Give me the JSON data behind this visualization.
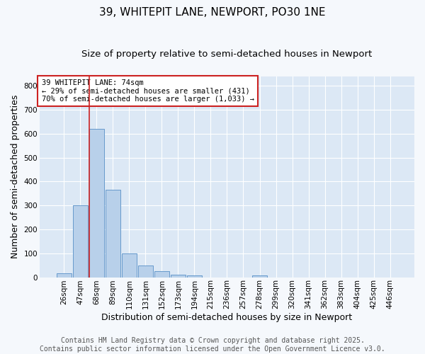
{
  "title": "39, WHITEPIT LANE, NEWPORT, PO30 1NE",
  "subtitle": "Size of property relative to semi-detached houses in Newport",
  "xlabel": "Distribution of semi-detached houses by size in Newport",
  "ylabel": "Number of semi-detached properties",
  "bar_labels": [
    "26sqm",
    "47sqm",
    "68sqm",
    "89sqm",
    "110sqm",
    "131sqm",
    "152sqm",
    "173sqm",
    "194sqm",
    "215sqm",
    "236sqm",
    "257sqm",
    "278sqm",
    "299sqm",
    "320sqm",
    "341sqm",
    "362sqm",
    "383sqm",
    "404sqm",
    "425sqm",
    "446sqm"
  ],
  "bar_values": [
    15,
    302,
    621,
    367,
    99,
    50,
    26,
    11,
    7,
    0,
    0,
    0,
    9,
    0,
    0,
    0,
    0,
    0,
    0,
    0,
    0
  ],
  "bar_color": "#b8d0ea",
  "bar_edge_color": "#6699cc",
  "plot_bg_color": "#dce8f5",
  "fig_bg_color": "#f5f8fc",
  "grid_color": "#ffffff",
  "vline_color": "#cc2222",
  "vline_x_index": 2,
  "annotation_text": "39 WHITEPIT LANE: 74sqm\n← 29% of semi-detached houses are smaller (431)\n70% of semi-detached houses are larger (1,033) →",
  "annotation_box_color": "#ffffff",
  "annotation_box_edge": "#cc2222",
  "footer_line1": "Contains HM Land Registry data © Crown copyright and database right 2025.",
  "footer_line2": "Contains public sector information licensed under the Open Government Licence v3.0.",
  "ylim": [
    0,
    840
  ],
  "yticks": [
    0,
    100,
    200,
    300,
    400,
    500,
    600,
    700,
    800
  ],
  "title_fontsize": 11,
  "subtitle_fontsize": 9.5,
  "axis_label_fontsize": 9,
  "tick_fontsize": 7.5,
  "annotation_fontsize": 7.5,
  "footer_fontsize": 7
}
